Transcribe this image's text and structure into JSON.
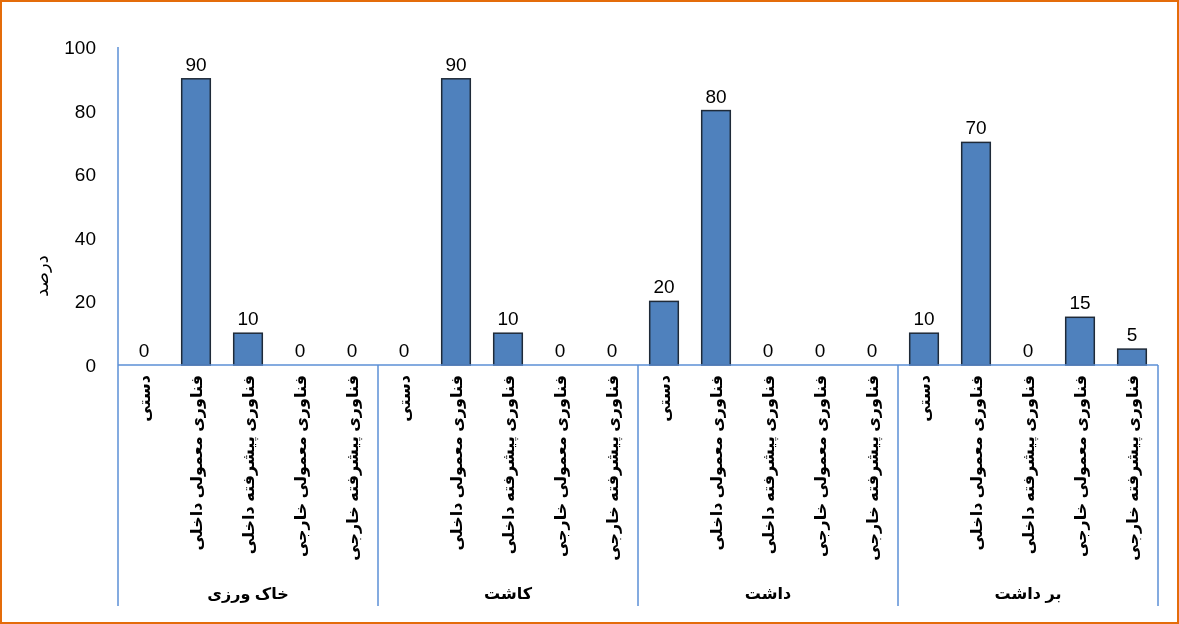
{
  "chart_data": {
    "type": "bar",
    "ylabel": "درصد",
    "categories": [
      "دستی",
      "فناوری معمولی داخلی",
      "فناوری پیشرفته داخلی",
      "فناوری معمولی خارجی",
      "فناوری پیشرفته خارجی",
      "دستی",
      "فناوری معمولی داخلی",
      "فناوری پیشرفته داخلی",
      "فناوری معمولی خارجی",
      "فناوری پیشرفته خارجی",
      "دستی",
      "فناوری معمولی داخلی",
      "فناوری پیشرفته داخلی",
      "فناوری معمولی خارجی",
      "فناوری پیشرفته خارجی",
      "دستی",
      "فناوری معمولی داخلی",
      "فناوری پیشرفته داخلی",
      "فناوری معمولی خارجی",
      "فناوری پیشرفته خارجی"
    ],
    "values": [
      0,
      90,
      10,
      0,
      0,
      0,
      90,
      10,
      0,
      0,
      20,
      80,
      0,
      0,
      0,
      10,
      70,
      0,
      15,
      5
    ],
    "color": "#4f81bd",
    "ylim": [
      0,
      100
    ],
    "yticks": [
      0,
      20,
      40,
      60,
      80,
      100
    ],
    "data_labels": true,
    "annotations": [
      "خاک ورزی",
      "کاشت",
      "داشت",
      "بر داشت"
    ]
  }
}
